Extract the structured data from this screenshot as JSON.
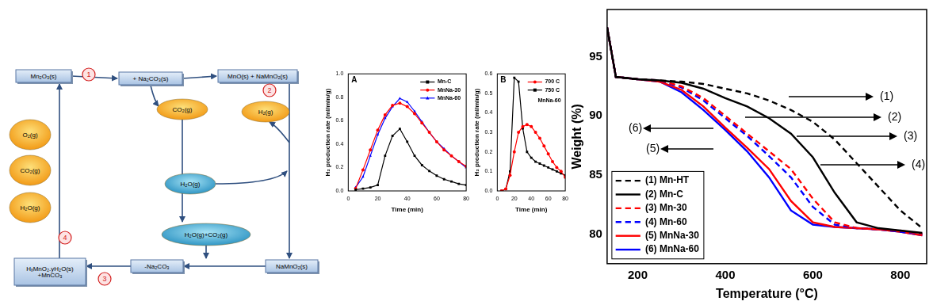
{
  "diagram": {
    "boxes": [
      "Mn₂O₃(s)",
      "+ Na₂CO₃(s)",
      "MnO(s) + NaMnO₂(s)",
      "NaMnO₂(s)",
      "-Na₂CO₃",
      [
        "HₓMnO₂.yH₂O(s)",
        "+MnCO₃"
      ]
    ],
    "ellipses": [
      "CO₂(g)",
      "H₂(g)",
      "H₂O(g)",
      "H₂O(g)+CO₂(g)",
      "O₂(g)",
      "CO₂(g)",
      "H₂O(g)"
    ],
    "steps": [
      "1",
      "2",
      "3",
      "4"
    ]
  },
  "chart_data": [
    {
      "type": "line",
      "title": "A",
      "x_label": "Time (min)",
      "y_label": "H₂ production rate (ml/min/g)",
      "x": [
        5,
        10,
        15,
        20,
        25,
        30,
        35,
        40,
        45,
        50,
        55,
        60,
        65,
        70,
        75,
        80
      ],
      "xlim": [
        0,
        80
      ],
      "xticks": [
        0,
        20,
        40,
        60,
        80
      ],
      "ylim": [
        0,
        1.0
      ],
      "yticks": [
        {
          "value": 0,
          "label": "0.0"
        },
        {
          "value": 0.2,
          "label": "0.2"
        },
        {
          "value": 0.4,
          "label": "0.4"
        },
        {
          "value": 0.6,
          "label": "0.6"
        },
        {
          "value": 0.8,
          "label": "0.8"
        },
        {
          "value": 1.0,
          "label": "1.0"
        }
      ],
      "grid": false,
      "legend": "top-right",
      "series": [
        {
          "name": "Mn-C",
          "color": "#000000",
          "marker": "square",
          "line_style": "solid",
          "values": [
            0.01,
            0.02,
            0.03,
            0.05,
            0.3,
            0.47,
            0.53,
            0.42,
            0.3,
            0.22,
            0.17,
            0.13,
            0.1,
            0.08,
            0.06,
            0.05
          ]
        },
        {
          "name": "MnNa-30",
          "color": "#ff0000",
          "marker": "circle",
          "line_style": "solid",
          "values": [
            0.02,
            0.18,
            0.35,
            0.52,
            0.65,
            0.73,
            0.75,
            0.72,
            0.66,
            0.58,
            0.5,
            0.42,
            0.35,
            0.3,
            0.25,
            0.21
          ]
        },
        {
          "name": "MnNa-60",
          "color": "#0000ff",
          "marker": "triangle",
          "line_style": "solid",
          "values": [
            0.03,
            0.12,
            0.3,
            0.48,
            0.62,
            0.72,
            0.79,
            0.76,
            0.68,
            0.59,
            0.5,
            0.42,
            0.36,
            0.3,
            0.25,
            0.2
          ]
        }
      ]
    },
    {
      "type": "line",
      "title": "B",
      "subtitle": "MnNa-60",
      "x_label": "Time (min)",
      "y_label": "H₂ production rate (ml/min/g)",
      "x": [
        5,
        10,
        15,
        20,
        25,
        30,
        35,
        40,
        45,
        50,
        55,
        60,
        65,
        70,
        75,
        80
      ],
      "xlim": [
        0,
        80
      ],
      "xticks": [
        0,
        20,
        40,
        60,
        80
      ],
      "ylim": [
        0,
        0.6
      ],
      "yticks": [
        {
          "value": 0,
          "label": "0.0"
        },
        {
          "value": 0.1,
          "label": "0.1"
        },
        {
          "value": 0.2,
          "label": "0.2"
        },
        {
          "value": 0.3,
          "label": "0.3"
        },
        {
          "value": 0.4,
          "label": "0.4"
        },
        {
          "value": 0.5,
          "label": "0.5"
        },
        {
          "value": 0.6,
          "label": "0.6"
        }
      ],
      "grid": false,
      "legend": "top-right",
      "series": [
        {
          "name": "700 C",
          "color": "#ff0000",
          "marker": "circle",
          "line_style": "solid",
          "values": [
            0,
            0.01,
            0.08,
            0.2,
            0.3,
            0.33,
            0.34,
            0.33,
            0.3,
            0.27,
            0.23,
            0.19,
            0.15,
            0.12,
            0.1,
            0.07
          ]
        },
        {
          "name": "750 C",
          "color": "#000000",
          "marker": "square",
          "line_style": "solid",
          "values": [
            0,
            0.01,
            0.1,
            0.58,
            0.56,
            0.32,
            0.2,
            0.17,
            0.15,
            0.14,
            0.13,
            0.12,
            0.11,
            0.1,
            0.09,
            0.08
          ]
        }
      ]
    },
    {
      "type": "line",
      "x_label": "Temperature (°C)",
      "y_label": "Weight (%)",
      "x": [
        130,
        150,
        200,
        250,
        300,
        350,
        400,
        450,
        500,
        550,
        600,
        650,
        700,
        750,
        800,
        850
      ],
      "xlim": [
        130,
        860
      ],
      "xticks": [
        200,
        400,
        600,
        800
      ],
      "ylim": [
        77.5,
        99
      ],
      "yticks": [
        80,
        85,
        90,
        95
      ],
      "grid": false,
      "legend": "bottom-left",
      "annotations": [
        "(1)",
        "(2)",
        "(3)",
        "(4)",
        "(6)",
        "(5)"
      ],
      "series": [
        {
          "name": "(1) Mn-HT",
          "color": "#000000",
          "marker": "none",
          "line_style": "dashed",
          "values": [
            97.5,
            93.3,
            93.1,
            93.0,
            92.9,
            92.7,
            92.3,
            91.9,
            91.3,
            90.5,
            89.5,
            88.0,
            86.0,
            84.0,
            82.0,
            80.5
          ]
        },
        {
          "name": "(2) Mn-C",
          "color": "#000000",
          "marker": "none",
          "line_style": "solid",
          "values": [
            97.5,
            93.3,
            93.1,
            93.0,
            92.8,
            92.3,
            91.5,
            90.8,
            89.8,
            88.5,
            86.5,
            83.5,
            81.0,
            80.5,
            80.3,
            80.1
          ]
        },
        {
          "name": "(3) Mn-30",
          "color": "#ff0000",
          "marker": "none",
          "line_style": "dashed",
          "values": [
            97.5,
            93.3,
            93.1,
            93.0,
            92.5,
            91.5,
            90.0,
            88.5,
            87.0,
            85.5,
            83.0,
            81.0,
            80.5,
            80.4,
            80.3,
            80.0
          ]
        },
        {
          "name": "(4) Mn-60",
          "color": "#0000ff",
          "marker": "none",
          "line_style": "dashed",
          "values": [
            97.5,
            93.3,
            93.1,
            93.0,
            92.4,
            91.3,
            89.8,
            88.3,
            86.6,
            84.8,
            82.3,
            80.8,
            80.5,
            80.4,
            80.2,
            80.0
          ]
        },
        {
          "name": "(5) MnNa-30",
          "color": "#ff0000",
          "marker": "none",
          "line_style": "solid",
          "values": [
            97.5,
            93.3,
            93.1,
            92.9,
            92.2,
            90.8,
            89.0,
            87.3,
            85.5,
            82.8,
            81.0,
            80.6,
            80.5,
            80.4,
            80.2,
            79.9
          ]
        },
        {
          "name": "(6) MnNa-60",
          "color": "#0000ff",
          "marker": "none",
          "line_style": "solid",
          "values": [
            97.5,
            93.3,
            93.1,
            92.9,
            92.0,
            90.5,
            88.8,
            87.0,
            84.8,
            82.0,
            80.8,
            80.6,
            80.5,
            80.4,
            80.2,
            79.9
          ]
        }
      ]
    }
  ]
}
